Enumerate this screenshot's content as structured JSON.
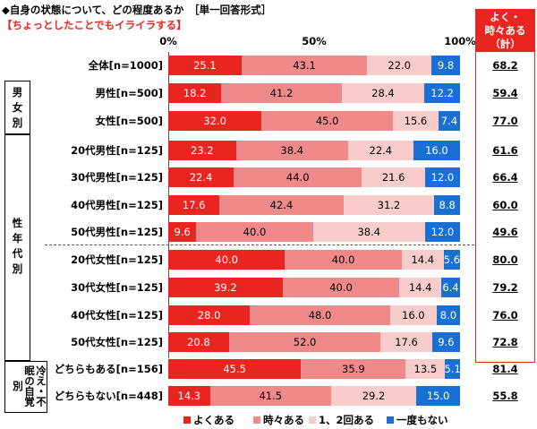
{
  "title": "◆自身の状態について、どの程度あるか　［単一回答形式］",
  "subtitle": "【ちょっとしたことでもイライラする】",
  "summary_header": [
    "よく・",
    "時々ある",
    "（計）"
  ],
  "groups": [
    "男女別",
    "性年代別",
    "冷え・不眠の自覚別"
  ],
  "colors": {
    "often": "#e8261f",
    "sometimes": "#f08a8a",
    "once_twice": "#f9cccc",
    "never": "#1a6fd4",
    "accent": "#e8261f"
  },
  "chart_data": {
    "type": "bar",
    "stacked": true,
    "orientation": "horizontal",
    "xlim": [
      0,
      100
    ],
    "x_ticks": [
      "0%",
      "50%",
      "100%"
    ],
    "categories": [
      "全体[n=1000]",
      "男性[n=500]",
      "女性[n=500]",
      "20代男性[n=125]",
      "30代男性[n=125]",
      "40代男性[n=125]",
      "50代男性[n=125]",
      "20代女性[n=125]",
      "30代女性[n=125]",
      "40代女性[n=125]",
      "50代女性[n=125]",
      "どちらもある[n=156]",
      "どちらもない[n=448]"
    ],
    "series": [
      {
        "name": "よくある",
        "values": [
          25.1,
          18.2,
          32.0,
          23.2,
          22.4,
          17.6,
          9.6,
          40.0,
          39.2,
          28.0,
          20.8,
          45.5,
          14.3
        ]
      },
      {
        "name": "時々ある",
        "values": [
          43.1,
          41.2,
          45.0,
          38.4,
          44.0,
          42.4,
          40.0,
          40.0,
          40.0,
          48.0,
          52.0,
          35.9,
          41.5
        ]
      },
      {
        "name": "1、2回ある",
        "values": [
          22.0,
          28.4,
          15.6,
          22.4,
          21.6,
          31.2,
          38.4,
          14.4,
          14.4,
          16.0,
          17.6,
          13.5,
          29.2
        ]
      },
      {
        "name": "一度もない",
        "values": [
          9.8,
          12.2,
          7.4,
          16.0,
          12.0,
          8.8,
          12.0,
          5.6,
          6.4,
          8.0,
          9.6,
          5.1,
          15.0
        ]
      }
    ],
    "summary_values": [
      "68.2",
      "59.4",
      "77.0",
      "61.6",
      "66.4",
      "60.0",
      "49.6",
      "80.0",
      "79.2",
      "76.0",
      "72.8",
      "81.4",
      "55.8"
    ],
    "legend_position": "bottom"
  }
}
